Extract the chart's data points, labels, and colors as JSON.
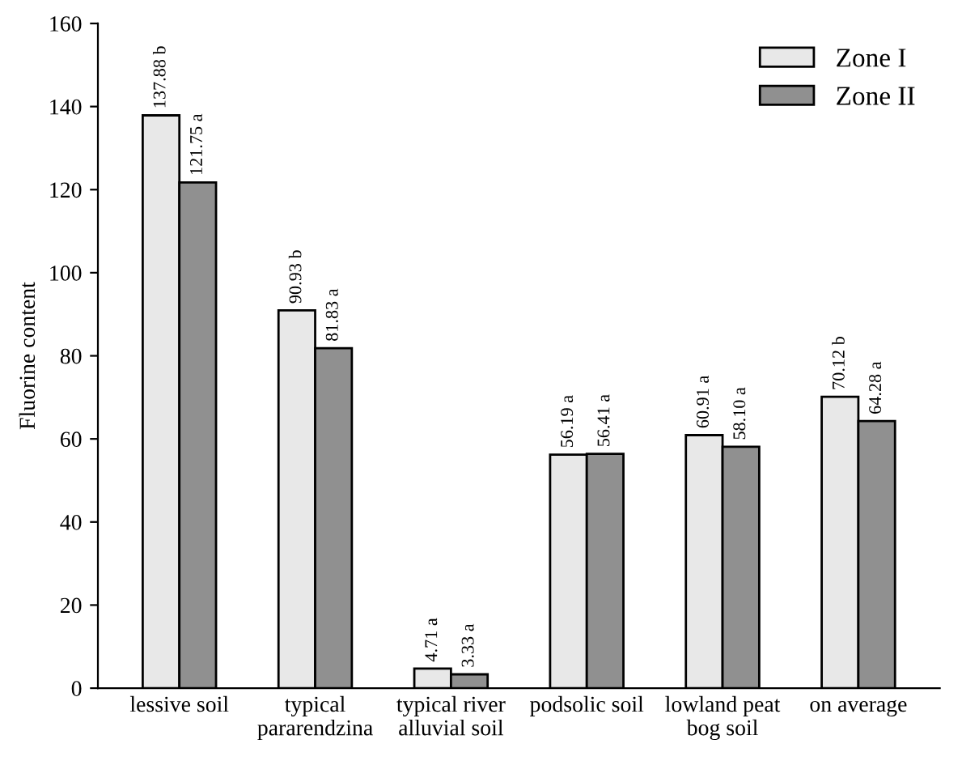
{
  "chart_data": {
    "type": "bar",
    "ylabel": "Fluorine content",
    "categories": [
      "lessive soil",
      "typical\npararendzina",
      "typical river\nalluvial soil",
      "podsolic soil",
      "lowland peat\nbog soil",
      "on average"
    ],
    "series": [
      {
        "name": "Zone I",
        "color": "#e8e8e8",
        "values": [
          137.88,
          90.93,
          4.71,
          56.19,
          60.91,
          70.12
        ],
        "value_labels": [
          "137.88 b",
          "90.93 b",
          "4.71 a",
          "56.19 a",
          "60.91 a",
          "70.12 b"
        ]
      },
      {
        "name": "Zone II",
        "color": "#909090",
        "values": [
          121.75,
          81.83,
          3.33,
          56.41,
          58.1,
          64.28
        ],
        "value_labels": [
          "121.75 a",
          "81.83 a",
          "3.33 a",
          "56.41 a",
          "58.10 a",
          "64.28 a"
        ]
      }
    ],
    "ylim": [
      0,
      160
    ],
    "yticks": [
      0,
      20,
      40,
      60,
      80,
      100,
      120,
      140,
      160
    ],
    "grid": false,
    "legend": "top right"
  }
}
